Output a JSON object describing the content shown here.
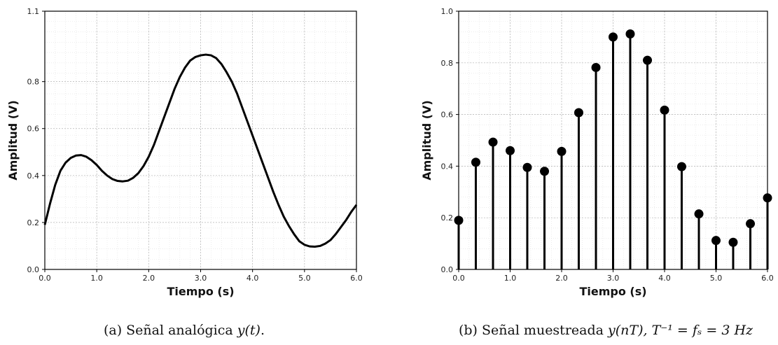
{
  "chart_data": [
    {
      "type": "line",
      "caption": "(a) Señal analógica y(t).",
      "caption_parts": {
        "prefix": "(a) Señal analógica ",
        "math": "y(t)",
        "suffix": "."
      },
      "xlabel": "Tiempo (s)",
      "ylabel": "Amplitud (V)",
      "xlim": [
        0.0,
        6.0
      ],
      "ylim": [
        0.0,
        1.1
      ],
      "xticks": [
        0.0,
        1.0,
        2.0,
        3.0,
        4.0,
        5.0,
        6.0
      ],
      "xtick_labels": [
        "0.0",
        "1.0",
        "2.0",
        "3.0",
        "4.0",
        "5.0",
        "6.0"
      ],
      "yticks": [
        0.0,
        0.2,
        0.4,
        0.6,
        0.8,
        1.1
      ],
      "ytick_labels": [
        "0.0",
        "0.2",
        "0.4",
        "0.6",
        "0.8",
        "1.1"
      ],
      "grid": true,
      "color": "#000000",
      "series": [
        {
          "x": [
            0.0,
            0.1,
            0.2,
            0.3,
            0.4,
            0.5,
            0.6,
            0.7,
            0.8,
            0.9,
            1.0,
            1.1,
            1.2,
            1.3,
            1.4,
            1.5,
            1.6,
            1.7,
            1.8,
            1.9,
            2.0,
            2.1,
            2.2,
            2.3,
            2.4,
            2.5,
            2.6,
            2.7,
            2.8,
            2.9,
            3.0,
            3.1,
            3.2,
            3.3,
            3.4,
            3.5,
            3.6,
            3.7,
            3.8,
            3.9,
            4.0,
            4.1,
            4.2,
            4.3,
            4.4,
            4.5,
            4.6,
            4.7,
            4.8,
            4.9,
            5.0,
            5.1,
            5.2,
            5.3,
            5.4,
            5.5,
            5.6,
            5.7,
            5.8,
            5.9,
            6.0
          ],
          "y": [
            0.19,
            0.28,
            0.36,
            0.42,
            0.455,
            0.475,
            0.485,
            0.487,
            0.48,
            0.465,
            0.445,
            0.42,
            0.4,
            0.385,
            0.377,
            0.375,
            0.378,
            0.39,
            0.41,
            0.44,
            0.48,
            0.53,
            0.59,
            0.65,
            0.71,
            0.77,
            0.82,
            0.86,
            0.89,
            0.905,
            0.912,
            0.915,
            0.912,
            0.9,
            0.875,
            0.84,
            0.8,
            0.75,
            0.69,
            0.63,
            0.57,
            0.51,
            0.45,
            0.39,
            0.33,
            0.275,
            0.225,
            0.185,
            0.15,
            0.12,
            0.105,
            0.098,
            0.097,
            0.1,
            0.11,
            0.125,
            0.15,
            0.18,
            0.21,
            0.245,
            0.275
          ]
        }
      ]
    },
    {
      "type": "stem",
      "caption": "(b) Señal muestreada y(nT), T⁻¹ = fs = 3 Hz",
      "caption_parts": {
        "prefix": "(b) Señal muestreada ",
        "math": "y(nT), T⁻¹ = fₛ = 3 Hz",
        "suffix": ""
      },
      "xlabel": "Tiempo (s)",
      "ylabel": "Amplitud (V)",
      "xlim": [
        0.0,
        6.0
      ],
      "ylim": [
        0.0,
        1.0
      ],
      "xticks": [
        0.0,
        1.0,
        2.0,
        3.0,
        4.0,
        5.0,
        6.0
      ],
      "xtick_labels": [
        "0.0",
        "1.0",
        "2.0",
        "3.0",
        "4.0",
        "5.0",
        "6.0"
      ],
      "yticks": [
        0.0,
        0.2,
        0.4,
        0.6,
        0.8,
        1.0
      ],
      "ytick_labels": [
        "0.0",
        "0.2",
        "0.4",
        "0.6",
        "0.8",
        "1.0"
      ],
      "grid": true,
      "color": "#000000",
      "series": [
        {
          "x": [
            0.0,
            0.333,
            0.667,
            1.0,
            1.333,
            1.667,
            2.0,
            2.333,
            2.667,
            3.0,
            3.333,
            3.667,
            4.0,
            4.333,
            4.667,
            5.0,
            5.333,
            5.667,
            6.0
          ],
          "y": [
            0.19,
            0.415,
            0.493,
            0.46,
            0.395,
            0.38,
            0.457,
            0.607,
            0.782,
            0.9,
            0.912,
            0.81,
            0.617,
            0.398,
            0.215,
            0.112,
            0.105,
            0.177,
            0.277
          ]
        }
      ]
    }
  ]
}
